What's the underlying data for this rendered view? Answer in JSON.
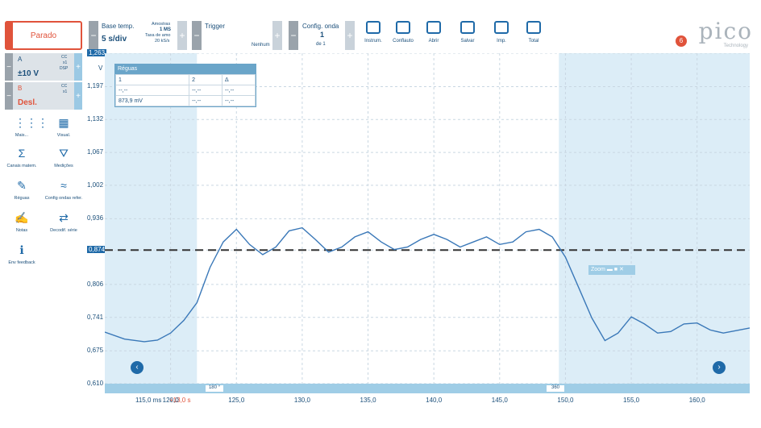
{
  "toolbar": {
    "run_state": "Parado",
    "timebase_label": "Base temp.",
    "timebase_value": "5 s/div",
    "samples_label": "Amostras",
    "samples_value": "1 MS",
    "rate_label": "Taxa de amo",
    "rate_value": "20 kS/s",
    "trigger_label": "Trigger",
    "trigger_mode": "Nenhum",
    "waveform_label": "Config. onda",
    "waveform_value": "1",
    "waveform_of": "de 1",
    "tools": [
      {
        "label": "Instrum.",
        "icon": "instrument-icon"
      },
      {
        "label": "Conflauto",
        "icon": "probe-icon"
      },
      {
        "label": "Abrir",
        "icon": "folder-icon"
      },
      {
        "label": "Salvar",
        "icon": "save-icon"
      },
      {
        "label": "Imp.",
        "icon": "print-icon"
      },
      {
        "label": "Total",
        "icon": "fullscreen-icon"
      }
    ],
    "logo": "pico",
    "logo_sub": "Technology",
    "notification_count": "6"
  },
  "channels": [
    {
      "name": "A",
      "range": "±10 V",
      "coupling": "CC",
      "probe": "x1",
      "extra": "DSP"
    },
    {
      "name": "B",
      "range": "Desl.",
      "coupling": "CC",
      "probe": "x1",
      "extra": ""
    }
  ],
  "side_buttons": [
    {
      "label": "Mais...",
      "icon": "more-icon"
    },
    {
      "label": "Visual.",
      "icon": "grid-view-icon"
    },
    {
      "label": "Canais matem.",
      "icon": "sigma-icon"
    },
    {
      "label": "Medições",
      "icon": "measure-icon"
    },
    {
      "label": "Réguas",
      "icon": "ruler-icon"
    },
    {
      "label": "Config ondas refer.",
      "icon": "reference-wave-icon"
    },
    {
      "label": "Notas",
      "icon": "notes-icon"
    },
    {
      "label": "Decodif. série",
      "icon": "serial-decode-icon"
    },
    {
      "label": "Env feedback",
      "icon": "info-icon"
    }
  ],
  "rulers_panel": {
    "title": "Réguas",
    "col1": "1",
    "col2": "2",
    "col3": "Δ",
    "row1": [
      "--,--",
      "--,--",
      "--,--"
    ],
    "row2": [
      "873,9 mV",
      "--,--",
      "--,--"
    ]
  },
  "zoom_label": "Zoom",
  "phase_markers": [
    "180 °",
    "360"
  ],
  "cursor_time": "115,0 ms",
  "cursor_delta": "+13,0 s",
  "axis_unit": "V",
  "chart_data": {
    "type": "line",
    "y_ticks": [
      "1,263",
      "1,197",
      "1,132",
      "1,067",
      "1,002",
      "0,936",
      "0,874",
      "0,806",
      "0,741",
      "0,675",
      "0,610"
    ],
    "x_ticks": [
      "120,0",
      "125,0",
      "130,0",
      "135,0",
      "140,0",
      "145,0",
      "150,0",
      "155,0",
      "160,0"
    ],
    "xlim": [
      115.0,
      164.0
    ],
    "ylim": [
      0.61,
      1.263
    ],
    "ruler_level": 0.874,
    "x": [
      115.0,
      116.5,
      118.0,
      119.0,
      120.0,
      121.0,
      122.0,
      123.0,
      124.0,
      125.0,
      126.0,
      127.0,
      128.0,
      129.0,
      130.0,
      131.0,
      132.0,
      133.0,
      134.0,
      135.0,
      136.0,
      137.0,
      138.0,
      139.0,
      140.0,
      141.0,
      142.0,
      143.0,
      144.0,
      145.0,
      146.0,
      147.0,
      148.0,
      149.0,
      150.0,
      151.0,
      152.0,
      153.0,
      154.0,
      155.0,
      156.0,
      157.0,
      158.0,
      159.0,
      160.0,
      161.0,
      162.0,
      163.0,
      164.0
    ],
    "y": [
      0.712,
      0.698,
      0.693,
      0.696,
      0.71,
      0.735,
      0.77,
      0.84,
      0.89,
      0.915,
      0.885,
      0.865,
      0.88,
      0.912,
      0.918,
      0.895,
      0.87,
      0.88,
      0.9,
      0.91,
      0.89,
      0.875,
      0.88,
      0.895,
      0.905,
      0.895,
      0.88,
      0.89,
      0.9,
      0.885,
      0.89,
      0.91,
      0.915,
      0.9,
      0.86,
      0.8,
      0.74,
      0.695,
      0.71,
      0.742,
      0.728,
      0.71,
      0.713,
      0.728,
      0.73,
      0.716,
      0.71,
      0.715,
      0.72
    ]
  }
}
